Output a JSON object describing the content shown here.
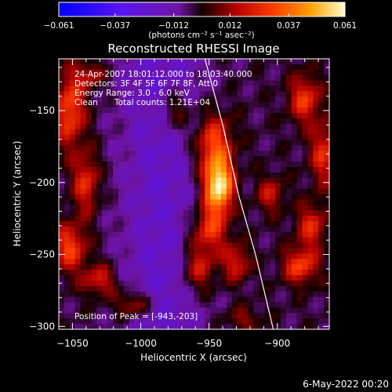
{
  "chart_data": {
    "type": "heatmap",
    "title": "Reconstructed RHESSI Image",
    "xlabel": "Heliocentric X (arcsec)",
    "ylabel": "Heliocentric Y (arcsec)",
    "xlim": [
      -1060,
      -862
    ],
    "ylim": [
      -302,
      -114
    ],
    "x_ticks": [
      -1050,
      -1000,
      -950,
      -900
    ],
    "y_ticks": [
      -150,
      -200,
      -250,
      -300
    ],
    "colorbar": {
      "range": [
        -0.061,
        0.061
      ],
      "ticks": [
        -0.061,
        -0.037,
        -0.012,
        0.012,
        0.037,
        0.061
      ],
      "tick_labels": [
        "−0.061",
        "−0.037",
        "−0.012",
        "0.012",
        "0.037",
        "0.061"
      ],
      "unit": "(photons cm⁻² s⁻¹ asec⁻²)"
    },
    "annotations": {
      "time": "24-Apr-2007 18:01:12.000 to 18:03:40.000",
      "detectors": "Detectors: 3F 4F 5F 6F 7F 8F, Att 0",
      "energy": "Energy Range: 3.0 - 6.0 keV",
      "clean": "Clean",
      "counts": "Total counts: 1.21E+04",
      "peak": "Position of Peak = [-943,-203]"
    },
    "peak": {
      "x": -943,
      "y": -203,
      "value": 0.061
    },
    "limb": [
      [
        -953,
        -114
      ],
      [
        -940,
        -160
      ],
      [
        -928,
        -210
      ],
      [
        -916,
        -250
      ],
      [
        -903,
        -302
      ]
    ],
    "sources": [
      {
        "x": -943,
        "y": -203,
        "value": 0.061,
        "sx": 7,
        "sy": 12
      },
      {
        "x": -947,
        "y": -175,
        "value": 0.035,
        "sx": 10,
        "sy": 16
      },
      {
        "x": -950,
        "y": -232,
        "value": 0.03,
        "sx": 10,
        "sy": 12
      },
      {
        "x": -958,
        "y": -260,
        "value": 0.026,
        "sx": 9,
        "sy": 12
      },
      {
        "x": -930,
        "y": -256,
        "value": 0.024,
        "sx": 7,
        "sy": 9
      },
      {
        "x": -1052,
        "y": -150,
        "value": 0.032,
        "sx": 8,
        "sy": 18
      },
      {
        "x": -1040,
        "y": -200,
        "value": 0.026,
        "sx": 7,
        "sy": 15
      },
      {
        "x": -1052,
        "y": -245,
        "value": 0.03,
        "sx": 9,
        "sy": 12
      },
      {
        "x": -1030,
        "y": -268,
        "value": 0.024,
        "sx": 9,
        "sy": 8
      },
      {
        "x": -1005,
        "y": -285,
        "value": 0.026,
        "sx": 10,
        "sy": 7
      },
      {
        "x": -1037,
        "y": -125,
        "value": 0.018,
        "sx": 8,
        "sy": 7
      },
      {
        "x": -880,
        "y": -142,
        "value": 0.028,
        "sx": 8,
        "sy": 12
      },
      {
        "x": -866,
        "y": -180,
        "value": 0.026,
        "sx": 7,
        "sy": 15
      },
      {
        "x": -875,
        "y": -230,
        "value": 0.024,
        "sx": 8,
        "sy": 11
      },
      {
        "x": -883,
        "y": -258,
        "value": 0.03,
        "sx": 9,
        "sy": 9
      },
      {
        "x": -905,
        "y": -208,
        "value": 0.02,
        "sx": 7,
        "sy": 9
      },
      {
        "x": -925,
        "y": -295,
        "value": 0.014,
        "sx": 9,
        "sy": 6
      },
      {
        "x": -975,
        "y": -150,
        "value": 0.022,
        "sx": 8,
        "sy": 11
      }
    ]
  },
  "footer": {
    "date": "6-May-2022 00:20"
  }
}
